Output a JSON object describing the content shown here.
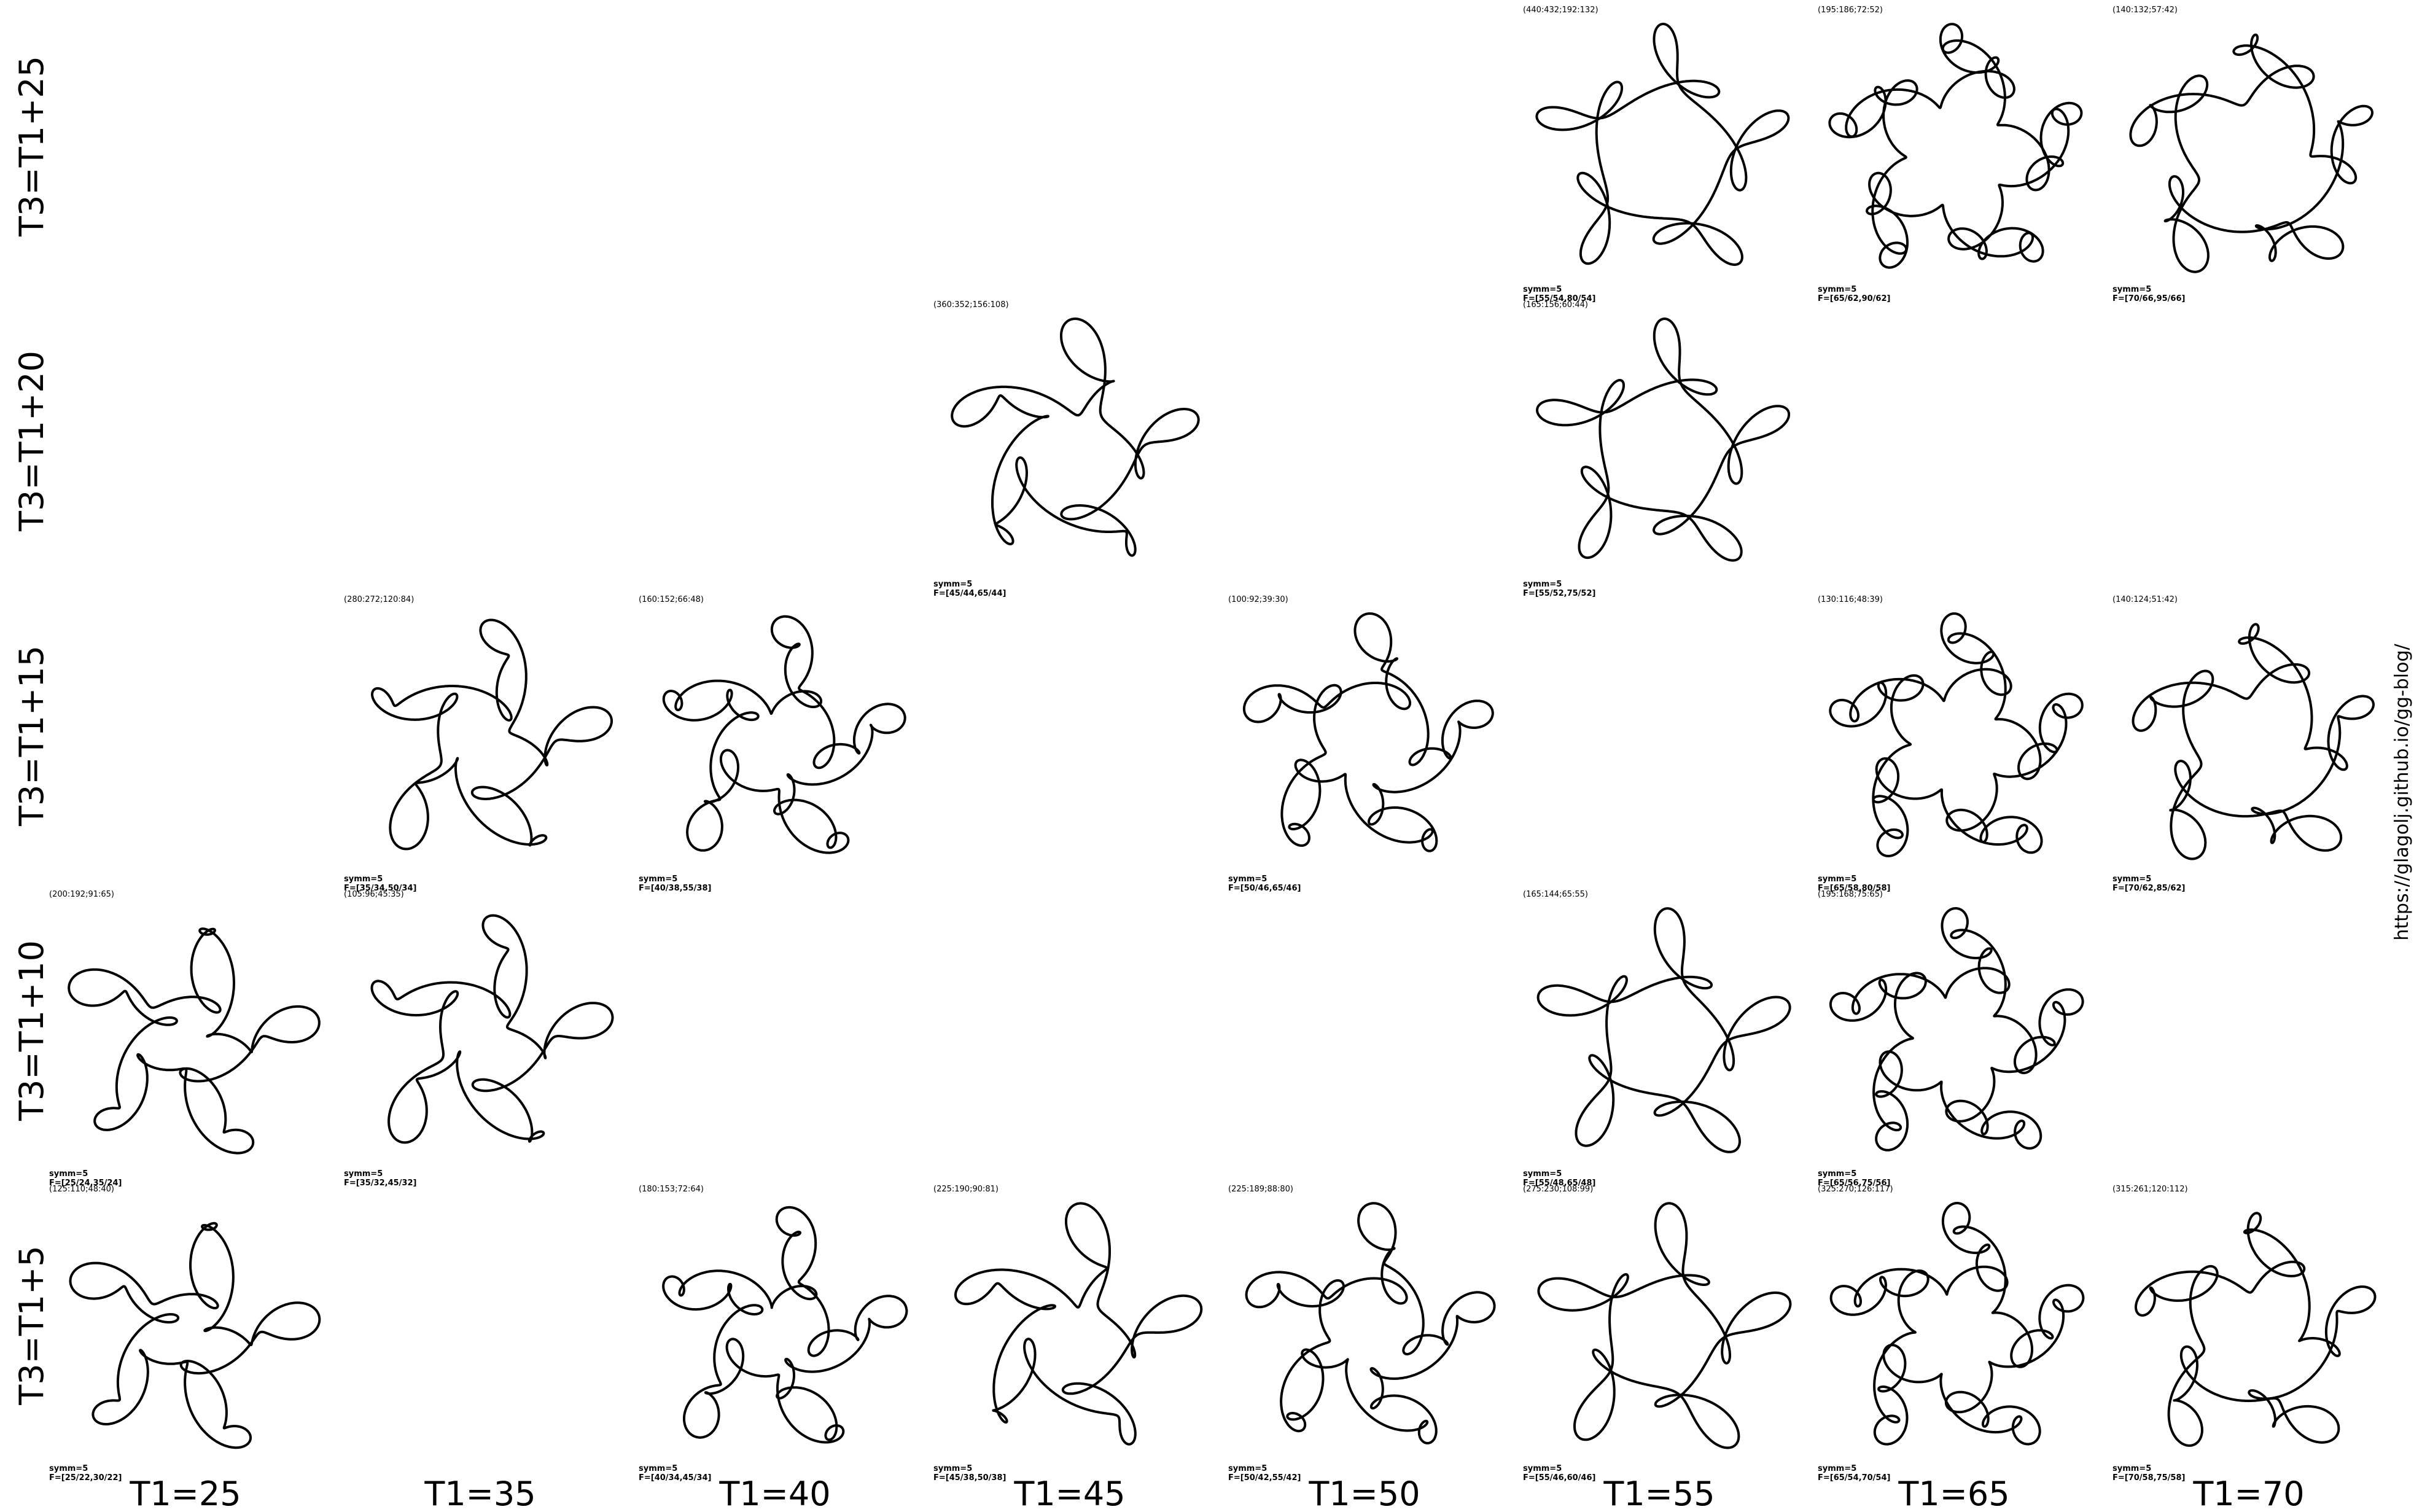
{
  "row_labels": [
    "T3=T1+25",
    "T3=T1+20",
    "T3=T1+15",
    "T3=T1+10",
    "T3=T1+5"
  ],
  "column_labels": [
    "T1=25",
    "T1=35",
    "T1=40",
    "T1=45",
    "T1=50",
    "T1=55",
    "T1=65",
    "T1=70"
  ],
  "url": "https://glagolj.github.io/gg-blog/",
  "symmetry": 5,
  "figures": [
    {
      "row": 0,
      "col": 5,
      "params": "(440:432;192:132)",
      "symm": "symm=5",
      "freq": "F=[55/54,80/54]",
      "f1": 55,
      "f2": 54,
      "f3": 80
    },
    {
      "row": 0,
      "col": 6,
      "params": "(195:186;72:52)",
      "symm": "symm=5",
      "freq": "F=[65/62,90/62]",
      "f1": 65,
      "f2": 62,
      "f3": 90
    },
    {
      "row": 0,
      "col": 7,
      "params": "(140:132;57:42)",
      "symm": "symm=5",
      "freq": "F=[70/66,95/66]",
      "f1": 70,
      "f2": 66,
      "f3": 95
    },
    {
      "row": 1,
      "col": 3,
      "params": "(360:352;156:108)",
      "symm": "symm=5",
      "freq": "F=[45/44,65/44]",
      "f1": 45,
      "f2": 44,
      "f3": 65
    },
    {
      "row": 1,
      "col": 5,
      "params": "(165:156;60:44)",
      "symm": "symm=5",
      "freq": "F=[55/52,75/52]",
      "f1": 55,
      "f2": 52,
      "f3": 75
    },
    {
      "row": 2,
      "col": 1,
      "params": "(280:272;120:84)",
      "symm": "symm=5",
      "freq": "F=[35/34,50/34]",
      "f1": 35,
      "f2": 34,
      "f3": 50
    },
    {
      "row": 2,
      "col": 2,
      "params": "(160:152;66:48)",
      "symm": "symm=5",
      "freq": "F=[40/38,55/38]",
      "f1": 40,
      "f2": 38,
      "f3": 55
    },
    {
      "row": 2,
      "col": 4,
      "params": "(100:92;39:30)",
      "symm": "symm=5",
      "freq": "F=[50/46,65/46]",
      "f1": 50,
      "f2": 46,
      "f3": 65
    },
    {
      "row": 2,
      "col": 6,
      "params": "(130:116;48:39)",
      "symm": "symm=5",
      "freq": "F=[65/58,80/58]",
      "f1": 65,
      "f2": 58,
      "f3": 80
    },
    {
      "row": 2,
      "col": 7,
      "params": "(140:124;51:42)",
      "symm": "symm=5",
      "freq": "F=[70/62,85/62]",
      "f1": 70,
      "f2": 62,
      "f3": 85
    },
    {
      "row": 3,
      "col": 0,
      "params": "(200:192;91:65)",
      "symm": "symm=5",
      "freq": "F=[25/24,35/24]",
      "f1": 25,
      "f2": 24,
      "f3": 35
    },
    {
      "row": 3,
      "col": 1,
      "params": "(105:96;45:35)",
      "symm": "symm=5",
      "freq": "F=[35/32,45/32]",
      "f1": 35,
      "f2": 32,
      "f3": 45
    },
    {
      "row": 3,
      "col": 5,
      "params": "(165:144;65:55)",
      "symm": "symm=5",
      "freq": "F=[55/48,65/48]",
      "f1": 55,
      "f2": 48,
      "f3": 65
    },
    {
      "row": 3,
      "col": 6,
      "params": "(195:168;75:65)",
      "symm": "symm=5",
      "freq": "F=[65/56,75/56]",
      "f1": 65,
      "f2": 56,
      "f3": 75
    },
    {
      "row": 4,
      "col": 0,
      "params": "(125:110;48:40)",
      "symm": "symm=5",
      "freq": "F=[25/22,30/22]",
      "f1": 25,
      "f2": 22,
      "f3": 30
    },
    {
      "row": 4,
      "col": 2,
      "params": "(180:153;72:64)",
      "symm": "symm=5",
      "freq": "F=[40/34,45/34]",
      "f1": 40,
      "f2": 34,
      "f3": 45
    },
    {
      "row": 4,
      "col": 3,
      "params": "(225:190;90:81)",
      "symm": "symm=5",
      "freq": "F=[45/38,50/38]",
      "f1": 45,
      "f2": 38,
      "f3": 50
    },
    {
      "row": 4,
      "col": 4,
      "params": "(225:189;88:80)",
      "symm": "symm=5",
      "freq": "F=[50/42,55/42]",
      "f1": 50,
      "f2": 42,
      "f3": 55
    },
    {
      "row": 4,
      "col": 5,
      "params": "(275:230;108:99)",
      "symm": "symm=5",
      "freq": "F=[55/46,60/46]",
      "f1": 55,
      "f2": 46,
      "f3": 60
    },
    {
      "row": 4,
      "col": 6,
      "params": "(325:270;126:117)",
      "symm": "symm=5",
      "freq": "F=[65/54,70/54]",
      "f1": 65,
      "f2": 54,
      "f3": 70
    },
    {
      "row": 4,
      "col": 7,
      "params": "(315:261;120:112)",
      "symm": "symm=5",
      "freq": "F=[70/58,75/58]",
      "f1": 70,
      "f2": 58,
      "f3": 75
    }
  ],
  "colors": {
    "background": "#ffffff",
    "ink": "#000000"
  }
}
